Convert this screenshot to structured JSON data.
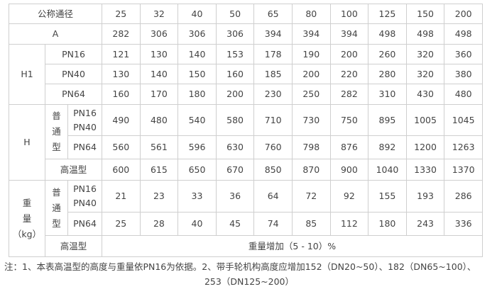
{
  "header": {
    "label": "公称通径",
    "sizes": [
      "25",
      "32",
      "40",
      "50",
      "65",
      "80",
      "100",
      "125",
      "150",
      "200"
    ]
  },
  "row_a": {
    "label": "A",
    "values": [
      "282",
      "306",
      "306",
      "306",
      "394",
      "394",
      "394",
      "498",
      "498",
      "498"
    ]
  },
  "h1": {
    "label": "H1",
    "rows": [
      {
        "label": "PN16",
        "values": [
          "121",
          "130",
          "140",
          "153",
          "178",
          "190",
          "200",
          "260",
          "320",
          "360"
        ]
      },
      {
        "label": "PN40",
        "values": [
          "130",
          "140",
          "150",
          "160",
          "185",
          "200",
          "220",
          "280",
          "320",
          "380"
        ]
      },
      {
        "label": "PN64",
        "values": [
          "160",
          "170",
          "180",
          "200",
          "230",
          "250",
          "282",
          "310",
          "430",
          "480"
        ]
      }
    ]
  },
  "h": {
    "label": "H",
    "type_label": [
      "普",
      "通",
      "型"
    ],
    "rows": [
      {
        "label1": "PN16",
        "label2": "PN40",
        "values": [
          "490",
          "480",
          "540",
          "580",
          "710",
          "730",
          "750",
          "895",
          "1005",
          "1045"
        ]
      },
      {
        "label1": "PN64",
        "values": [
          "560",
          "561",
          "596",
          "630",
          "760",
          "798",
          "876",
          "892",
          "1200",
          "1263"
        ]
      }
    ],
    "high_temp": {
      "label": "高温型",
      "values": [
        "600",
        "615",
        "650",
        "670",
        "850",
        "870",
        "900",
        "1040",
        "1330",
        "1370"
      ]
    }
  },
  "weight": {
    "label": [
      "重",
      "量",
      "（kg）"
    ],
    "type_label": [
      "普",
      "通",
      "型"
    ],
    "rows": [
      {
        "label1": "PN16",
        "label2": "PN40",
        "values": [
          "21",
          "23",
          "33",
          "36",
          "64",
          "72",
          "92",
          "155",
          "193",
          "286"
        ]
      },
      {
        "label1": "PN64",
        "values": [
          "25",
          "28",
          "40",
          "45",
          "74",
          "85",
          "112",
          "180",
          "243",
          "336"
        ]
      }
    ],
    "high_temp": {
      "label": "高温型",
      "value": "重量增加（5 - 10）%"
    }
  },
  "notes": {
    "line1": "注：1、本表高温型的高度与重量依PN16为依据。2、带手轮机构高度应增加152（DN20~50）、182（DN65~100）、",
    "line2": "253（DN125~200）"
  }
}
